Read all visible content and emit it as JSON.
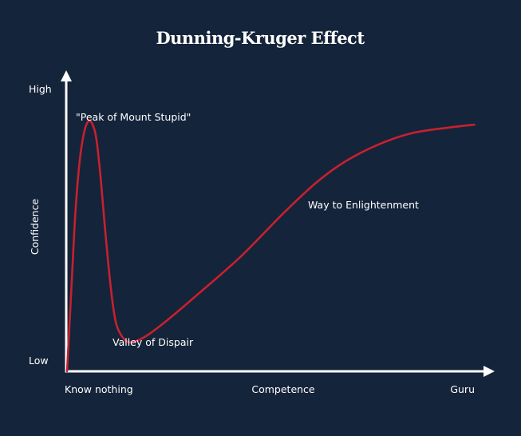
{
  "chart_data": {
    "type": "line",
    "title": "Dunning-Kruger Effect",
    "xlabel": "Competence",
    "ylabel": "Confidence",
    "x_ticks": {
      "start": "Know nothing",
      "end": "Guru"
    },
    "y_ticks": {
      "top": "High",
      "bottom": "Low"
    },
    "xlim": [
      0,
      100
    ],
    "ylim": [
      0,
      100
    ],
    "grid": false,
    "series": [
      {
        "name": "Confidence",
        "color": "#c8202f",
        "points": [
          [
            0,
            0
          ],
          [
            1,
            28
          ],
          [
            2,
            56
          ],
          [
            3,
            74
          ],
          [
            4,
            84
          ],
          [
            5,
            88.5
          ],
          [
            6,
            88
          ],
          [
            7,
            83
          ],
          [
            8,
            70
          ],
          [
            9,
            53
          ],
          [
            10,
            37
          ],
          [
            11,
            24
          ],
          [
            12,
            16
          ],
          [
            14,
            11
          ],
          [
            16,
            10.5
          ],
          [
            19,
            12.5
          ],
          [
            24,
            18
          ],
          [
            32,
            28
          ],
          [
            42,
            41
          ],
          [
            52,
            56
          ],
          [
            60,
            67
          ],
          [
            67,
            74.5
          ],
          [
            75,
            80.5
          ],
          [
            83,
            84.5
          ],
          [
            92,
            86.5
          ],
          [
            98,
            87.5
          ]
        ]
      }
    ],
    "annotations": [
      {
        "text": "\"Peak of Mount Stupid\"",
        "x": 5,
        "y": 88.5
      },
      {
        "text": "Valley of Dispair",
        "x": 16,
        "y": 10.5
      },
      {
        "text": "Way to Enlightenment",
        "x": 60,
        "y": 67
      }
    ]
  },
  "colors": {
    "background": "#14243a",
    "axis": "#ffffff",
    "curve": "#c8202f",
    "text": "#ffffff"
  }
}
